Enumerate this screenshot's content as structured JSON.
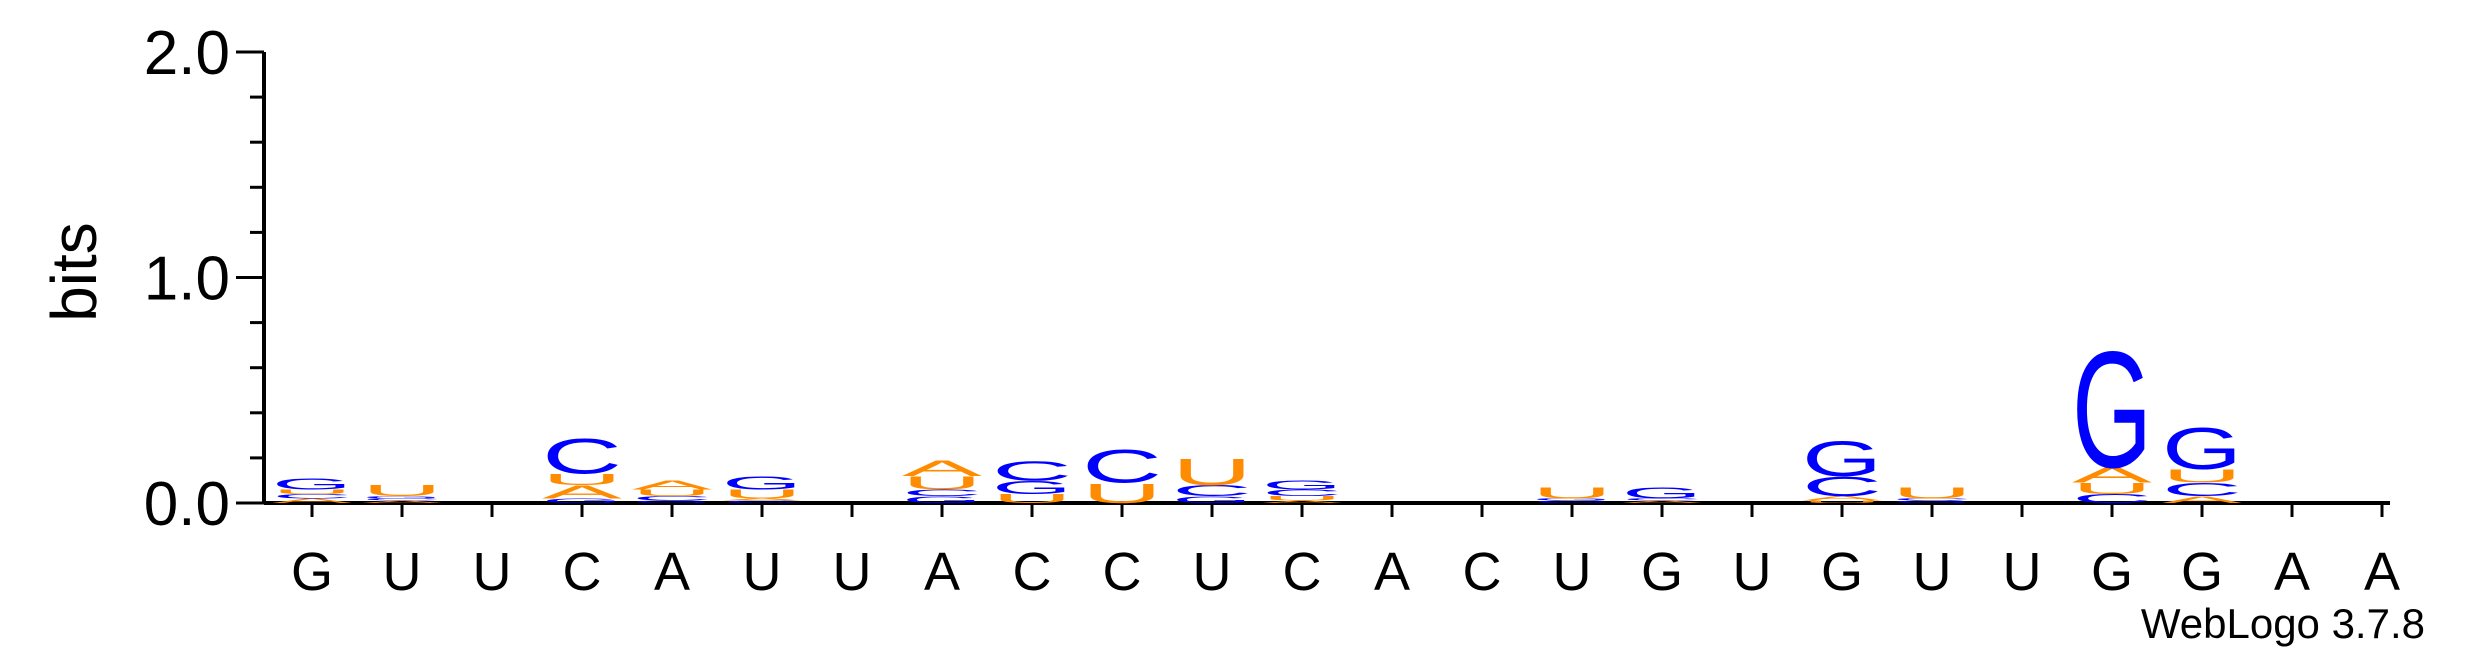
{
  "chart_data": {
    "type": "sequence-logo",
    "ylabel": "bits",
    "ylim": [
      0,
      2.0
    ],
    "y_ticks": [
      "0.0",
      "1.0",
      "2.0"
    ],
    "x_sequence": [
      "G",
      "U",
      "U",
      "C",
      "A",
      "U",
      "U",
      "A",
      "C",
      "C",
      "U",
      "C",
      "A",
      "C",
      "U",
      "G",
      "U",
      "G",
      "U",
      "U",
      "G",
      "G",
      "A",
      "A"
    ],
    "colors": {
      "G": "#0000ff",
      "C": "#0000ff",
      "A": "#ff8c00",
      "U": "#ff8c00"
    },
    "positions": [
      [
        {
          "l": "A",
          "h": 0.02
        },
        {
          "l": "C",
          "h": 0.02
        },
        {
          "l": "U",
          "h": 0.02
        },
        {
          "l": "G",
          "h": 0.05
        }
      ],
      [
        {
          "l": "A",
          "h": 0.01
        },
        {
          "l": "C",
          "h": 0.01
        },
        {
          "l": "G",
          "h": 0.01
        },
        {
          "l": "U",
          "h": 0.05
        }
      ],
      [],
      [
        {
          "l": "G",
          "h": 0.02
        },
        {
          "l": "A",
          "h": 0.06
        },
        {
          "l": "U",
          "h": 0.05
        },
        {
          "l": "C",
          "h": 0.16
        }
      ],
      [
        {
          "l": "G",
          "h": 0.01
        },
        {
          "l": "C",
          "h": 0.02
        },
        {
          "l": "U",
          "h": 0.03
        },
        {
          "l": "A",
          "h": 0.04
        }
      ],
      [
        {
          "l": "C",
          "h": 0.01
        },
        {
          "l": "A",
          "h": 0.01
        },
        {
          "l": "U",
          "h": 0.04
        },
        {
          "l": "G",
          "h": 0.06
        }
      ],
      [],
      [
        {
          "l": "G",
          "h": 0.03
        },
        {
          "l": "C",
          "h": 0.03
        },
        {
          "l": "U",
          "h": 0.06
        },
        {
          "l": "A",
          "h": 0.07
        }
      ],
      [
        {
          "l": "U",
          "h": 0.04
        },
        {
          "l": "G",
          "h": 0.06
        },
        {
          "l": "C",
          "h": 0.09
        }
      ],
      [
        {
          "l": "U",
          "h": 0.09
        },
        {
          "l": "C",
          "h": 0.15
        }
      ],
      [
        {
          "l": "G",
          "h": 0.03
        },
        {
          "l": "C",
          "h": 0.05
        },
        {
          "l": "U",
          "h": 0.12
        }
      ],
      [
        {
          "l": "A",
          "h": 0.01
        },
        {
          "l": "U",
          "h": 0.02
        },
        {
          "l": "C",
          "h": 0.03
        },
        {
          "l": "G",
          "h": 0.04
        }
      ],
      [],
      [],
      [
        {
          "l": "C",
          "h": 0.01
        },
        {
          "l": "G",
          "h": 0.01
        },
        {
          "l": "U",
          "h": 0.05
        }
      ],
      [
        {
          "l": "A",
          "h": 0.01
        },
        {
          "l": "C",
          "h": 0.01
        },
        {
          "l": "G",
          "h": 0.05
        }
      ],
      [],
      [
        {
          "l": "U",
          "h": 0.01
        },
        {
          "l": "A",
          "h": 0.02
        },
        {
          "l": "C",
          "h": 0.09
        },
        {
          "l": "G",
          "h": 0.16
        }
      ],
      [
        {
          "l": "G",
          "h": 0.01
        },
        {
          "l": "C",
          "h": 0.01
        },
        {
          "l": "U",
          "h": 0.05
        }
      ],
      [],
      [
        {
          "l": "C",
          "h": 0.04
        },
        {
          "l": "U",
          "h": 0.05
        },
        {
          "l": "A",
          "h": 0.07
        },
        {
          "l": "G",
          "h": 0.53
        }
      ],
      [
        {
          "l": "A",
          "h": 0.03
        },
        {
          "l": "C",
          "h": 0.06
        },
        {
          "l": "U",
          "h": 0.06
        },
        {
          "l": "G",
          "h": 0.19
        }
      ],
      [],
      []
    ]
  },
  "footer": {
    "credit": "WebLogo 3.7.8"
  }
}
